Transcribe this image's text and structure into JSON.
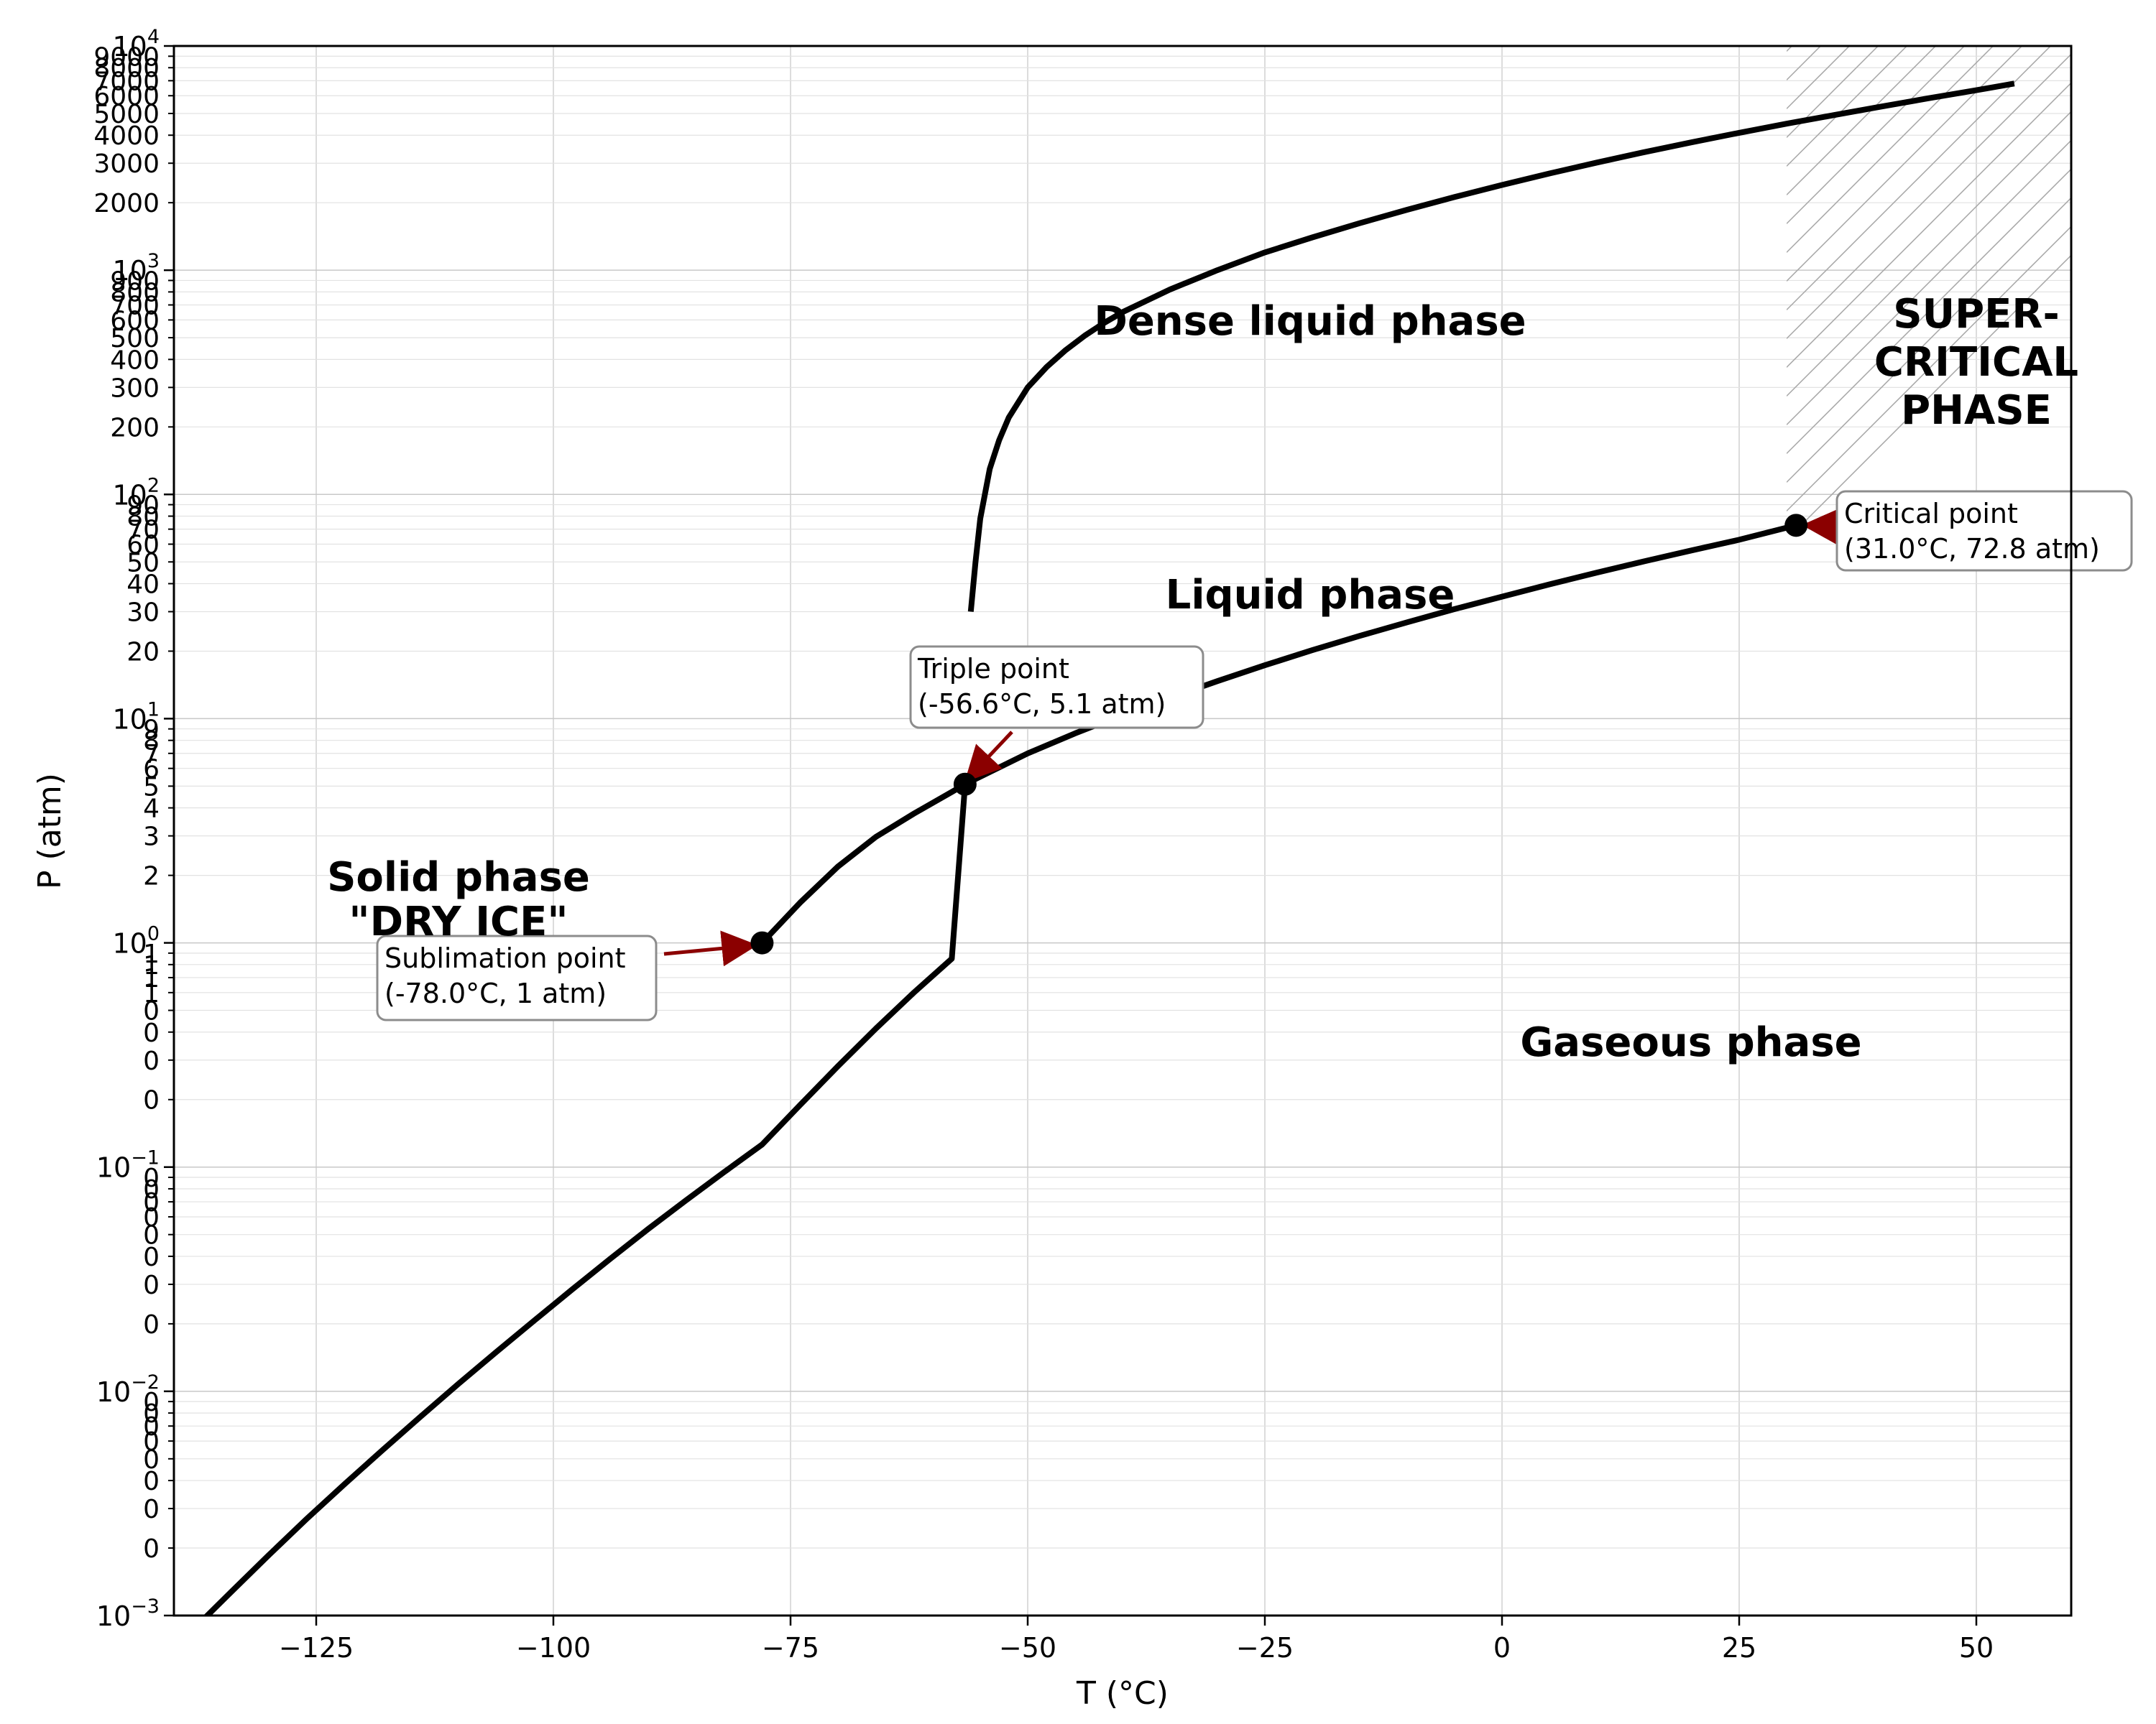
{
  "chart_data": {
    "type": "line",
    "title": "",
    "xlabel": "T (°C)",
    "ylabel": "P (atm)",
    "xlim": [
      -140,
      60
    ],
    "ylim": [
      0.001,
      10000
    ],
    "yscale": "log",
    "grid": true,
    "x_ticks": [
      -125,
      -100,
      -75,
      -50,
      -25,
      0,
      25,
      50
    ],
    "x_tick_labels": [
      "−125",
      "−100",
      "−75",
      "−50",
      "−25",
      "0",
      "25",
      "50"
    ],
    "y_major_ticks": [
      0.001,
      0.01,
      0.1,
      1,
      10,
      100,
      1000,
      10000
    ],
    "y_major_labels": [
      {
        "base": "10",
        "exp": "−3"
      },
      {
        "base": "10",
        "exp": "−2"
      },
      {
        "base": "10",
        "exp": "−1"
      },
      {
        "base": "10",
        "exp": "0"
      },
      {
        "base": "10",
        "exp": "1"
      },
      {
        "base": "10",
        "exp": "2"
      },
      {
        "base": "10",
        "exp": "3"
      },
      {
        "base": "10",
        "exp": "4"
      }
    ],
    "y_minor_labels": [
      {
        "v": 0.002,
        "t": "0"
      },
      {
        "v": 0.003,
        "t": "0"
      },
      {
        "v": 0.004,
        "t": "0"
      },
      {
        "v": 0.005,
        "t": "0"
      },
      {
        "v": 0.006,
        "t": "0"
      },
      {
        "v": 0.007,
        "t": "0"
      },
      {
        "v": 0.008,
        "t": "0"
      },
      {
        "v": 0.009,
        "t": "0"
      },
      {
        "v": 0.02,
        "t": "0"
      },
      {
        "v": 0.03,
        "t": "0"
      },
      {
        "v": 0.04,
        "t": "0"
      },
      {
        "v": 0.05,
        "t": "0"
      },
      {
        "v": 0.06,
        "t": "0"
      },
      {
        "v": 0.07,
        "t": "0"
      },
      {
        "v": 0.08,
        "t": "0"
      },
      {
        "v": 0.09,
        "t": "0"
      },
      {
        "v": 0.2,
        "t": "0"
      },
      {
        "v": 0.3,
        "t": "0"
      },
      {
        "v": 0.4,
        "t": "0"
      },
      {
        "v": 0.5,
        "t": "0"
      },
      {
        "v": 0.6,
        "t": "1"
      },
      {
        "v": 0.7,
        "t": "1"
      },
      {
        "v": 0.8,
        "t": "1"
      },
      {
        "v": 0.9,
        "t": "1"
      },
      {
        "v": 2,
        "t": "2"
      },
      {
        "v": 3,
        "t": "3"
      },
      {
        "v": 4,
        "t": "4"
      },
      {
        "v": 5,
        "t": "5"
      },
      {
        "v": 6,
        "t": "6"
      },
      {
        "v": 7,
        "t": "7"
      },
      {
        "v": 8,
        "t": "8"
      },
      {
        "v": 9,
        "t": "9"
      },
      {
        "v": 20,
        "t": "20"
      },
      {
        "v": 30,
        "t": "30"
      },
      {
        "v": 40,
        "t": "40"
      },
      {
        "v": 50,
        "t": "50"
      },
      {
        "v": 60,
        "t": "60"
      },
      {
        "v": 70,
        "t": "70"
      },
      {
        "v": 80,
        "t": "80"
      },
      {
        "v": 90,
        "t": "90"
      },
      {
        "v": 200,
        "t": "200"
      },
      {
        "v": 300,
        "t": "300"
      },
      {
        "v": 400,
        "t": "400"
      },
      {
        "v": 500,
        "t": "500"
      },
      {
        "v": 600,
        "t": "600"
      },
      {
        "v": 700,
        "t": "700"
      },
      {
        "v": 800,
        "t": "800"
      },
      {
        "v": 900,
        "t": "900"
      },
      {
        "v": 2000,
        "t": "2000"
      },
      {
        "v": 3000,
        "t": "3000"
      },
      {
        "v": 4000,
        "t": "4000"
      },
      {
        "v": 5000,
        "t": "5000"
      },
      {
        "v": 6000,
        "t": "6000"
      },
      {
        "v": 7000,
        "t": "7000"
      },
      {
        "v": 8000,
        "t": "8000"
      },
      {
        "v": 9000,
        "t": "9000"
      }
    ],
    "series": [
      {
        "color": "#000000",
        "x": [
          -137.8,
          -134.0,
          -130.0,
          -126.0,
          -122.0,
          -118.0,
          -114.0,
          -110.0,
          -106.0,
          -102.0,
          -98.0,
          -94.0,
          -90.0,
          -86.0,
          -82.0,
          -78.0,
          -74.0,
          -70.0,
          -66.0,
          -62.0,
          -58.0,
          -56.6
        ],
        "y": [
          0.00088,
          0.00127,
          0.00186,
          0.0027,
          0.00386,
          0.00547,
          0.00771,
          0.0108,
          0.015,
          0.0207,
          0.0285,
          0.039,
          0.053,
          0.0712,
          0.095,
          0.126,
          0.189,
          0.282,
          0.415,
          0.6,
          0.85,
          5.1
        ]
      },
      {
        "color": "#000000",
        "x": [
          -78.0,
          -74.0,
          -70.0,
          -66.0,
          -62.0,
          -58.0,
          -56.6
        ],
        "y": [
          1.0,
          1.51,
          2.19,
          2.97,
          3.77,
          4.71,
          5.1
        ]
      },
      {
        "color": "#000000",
        "x": [
          -56.6,
          -50.0,
          -45.0,
          -40.0,
          -35.0,
          -30.0,
          -25.0,
          -20.0,
          -15.0,
          -10.0,
          -5.0,
          0.0,
          5.0,
          10.0,
          15.0,
          20.0,
          25.0,
          31.0
        ],
        "y": [
          5.1,
          7.0,
          8.6,
          10.4,
          12.4,
          14.7,
          17.3,
          20.2,
          23.4,
          26.9,
          30.8,
          35.0,
          39.7,
          44.8,
          50.3,
          56.3,
          62.8,
          72.8
        ]
      },
      {
        "color": "#000000",
        "x": [
          -56.0,
          -55.5,
          -55.0,
          -54.0,
          -53.0,
          -52.0,
          -50.0,
          -48.0,
          -46.0,
          -44.0,
          -42.0,
          -40.0,
          -35.0,
          -30.0,
          -25.0,
          -20.0,
          -15.0,
          -10.0,
          -5.0,
          0.0,
          5.0,
          10.0,
          15.0,
          20.0,
          25.0,
          30.0,
          35.0,
          40.0,
          45.0,
          50.0,
          54.0
        ],
        "y": [
          30,
          50,
          78,
          130,
          175,
          220,
          300,
          370,
          440,
          510,
          580,
          650,
          820,
          1000,
          1200,
          1400,
          1620,
          1860,
          2120,
          2400,
          2700,
          3020,
          3360,
          3720,
          4100,
          4500,
          4920,
          5370,
          5850,
          6350,
          6800
        ]
      }
    ],
    "points": [
      {
        "name": "Sublimation point",
        "x": -78.0,
        "y": 1.0
      },
      {
        "name": "Triple point",
        "x": -56.6,
        "y": 5.1
      },
      {
        "name": "Critical point",
        "x": 31.0,
        "y": 72.8
      }
    ],
    "annotations": [
      {
        "line1": "Sublimation point",
        "line2": "(-78.0°C, 1 atm)"
      },
      {
        "line1": "Triple point",
        "line2": "(-56.6°C, 5.1 atm)"
      },
      {
        "line1": "Critical point",
        "line2": "(31.0°C, 72.8 atm)"
      }
    ],
    "region_labels": [
      {
        "lines": [
          "Dense liquid phase"
        ]
      },
      {
        "lines": [
          "Liquid phase"
        ]
      },
      {
        "lines": [
          "Solid phase",
          "\"DRY ICE\""
        ]
      },
      {
        "lines": [
          "Gaseous phase"
        ]
      },
      {
        "lines": [
          "SUPER-",
          "CRITICAL",
          "PHASE"
        ]
      }
    ],
    "supercritical_region": {
      "x": [
        30,
        60
      ],
      "y_min": 72.8,
      "y_max": 10000,
      "hatch": "diagonal",
      "color": "#aaaaaa"
    },
    "arrow_color": "#8b0000"
  }
}
